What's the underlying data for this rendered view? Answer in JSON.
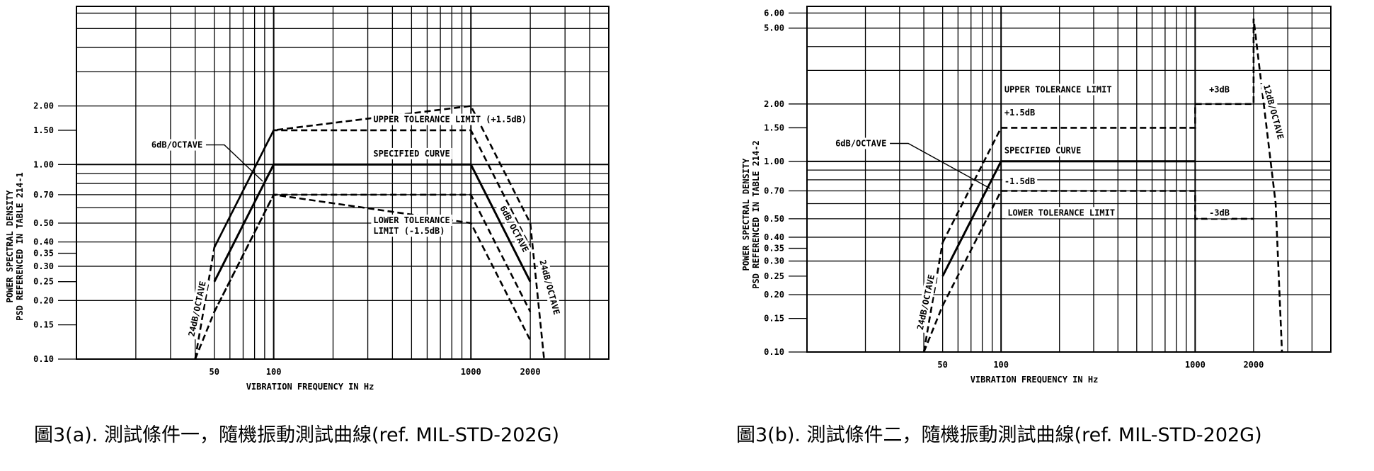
{
  "chart_data": [
    {
      "type": "line",
      "xscale": "log",
      "yscale": "log",
      "xlim": [
        10,
        5000
      ],
      "ylim": [
        0.1,
        6.5
      ],
      "grid": true,
      "xlabel": "VIBRATION FREQUENCY IN Hz",
      "ylabel_lines": [
        "POWER SPECTRAL DENSITY",
        "PSD REFERENCED IN TABLE 214-1"
      ],
      "x_ticks": [
        50,
        100,
        1000,
        2000
      ],
      "y_ticks": [
        0.1,
        0.15,
        0.2,
        0.25,
        0.3,
        0.35,
        0.4,
        0.5,
        0.7,
        1.0,
        1.5,
        2.0
      ],
      "y_tick_labels": [
        "0.10",
        "0.15",
        "0.20",
        "0.25",
        "0.30",
        "0.35",
        "0.40",
        "0.50",
        "0.70",
        "1.00",
        "1.50",
        "2.00"
      ],
      "series": [
        {
          "style": "solid",
          "x": [
            50,
            100,
            1000,
            2000
          ],
          "y": [
            0.25,
            1.0,
            1.0,
            0.25
          ]
        },
        {
          "style": "dashed",
          "x": [
            50,
            100,
            1000,
            2000
          ],
          "y": [
            0.375,
            1.5,
            1.5,
            0.375
          ]
        },
        {
          "style": "dashed",
          "x": [
            50,
            100,
            1000,
            2000
          ],
          "y": [
            0.175,
            0.7,
            0.7,
            0.175
          ]
        },
        {
          "style": "dashed",
          "x": [
            40,
            50,
            100,
            1000,
            2000,
            2350
          ],
          "y": [
            0.1,
            0.375,
            1.5,
            2.0,
            0.5,
            0.1
          ]
        },
        {
          "style": "dashed",
          "x": [
            40,
            50,
            100,
            1000,
            2000
          ],
          "y": [
            0.1,
            0.175,
            0.7,
            0.5,
            0.125
          ]
        }
      ],
      "annotations": [
        {
          "text": "UPPER TOLERANCE LIMIT (+1.5dB)",
          "x": 320,
          "y": 1.65
        },
        {
          "text": "SPECIFIED CURVE",
          "x": 320,
          "y": 1.1
        },
        {
          "text": "LOWER TOLERANCE",
          "x": 320,
          "y": 0.5
        },
        {
          "text": "LIMIT (-1.5dB)",
          "x": 320,
          "y": 0.44
        },
        {
          "text": "6dB/OCTAVE",
          "x": 24,
          "y": 1.22,
          "pointer_to": [
            88,
            0.82
          ]
        },
        {
          "text": "24dB/OCTAVE",
          "x": 39.5,
          "y": 0.13,
          "rotate": -78
        },
        {
          "text": "6dB/OCTAVE",
          "x": 1400,
          "y": 0.6,
          "rotate": 62
        },
        {
          "text": "24dB/OCTAVE",
          "x": 2230,
          "y": 0.32,
          "rotate": 75
        }
      ]
    },
    {
      "type": "line",
      "xscale": "log",
      "yscale": "log",
      "xlim": [
        10,
        5000
      ],
      "ylim": [
        0.1,
        6.5
      ],
      "grid": true,
      "xlabel": "VIBRATION FREQUENCY IN Hz",
      "ylabel_lines": [
        "POWER SPECTRAL DENSITY",
        "PSD REFERENCED IN TABLE 214-2"
      ],
      "x_ticks": [
        50,
        100,
        1000,
        2000
      ],
      "y_ticks": [
        0.1,
        0.15,
        0.2,
        0.25,
        0.3,
        0.35,
        0.4,
        0.5,
        0.7,
        1.0,
        1.5,
        2.0,
        5.0,
        6.0
      ],
      "y_tick_labels": [
        "0.10",
        "0.15",
        "0.20",
        "0.25",
        "0.30",
        "0.35",
        "0.40",
        "0.50",
        "0.70",
        "1.00",
        "1.50",
        "2.00",
        "5.00",
        "6.00"
      ],
      "series": [
        {
          "style": "solid",
          "x": [
            50,
            100,
            1000
          ],
          "y": [
            0.25,
            1.0,
            1.0
          ]
        },
        {
          "style": "dashed",
          "x": [
            50,
            100,
            1000,
            1000,
            2000,
            2000,
            2600,
            2800
          ],
          "y": [
            0.375,
            1.5,
            1.5,
            2.0,
            2.0,
            5.6,
            0.6,
            0.1
          ]
        },
        {
          "style": "dashed",
          "x": [
            50,
            100,
            1000,
            1000,
            2000
          ],
          "y": [
            0.175,
            0.7,
            0.7,
            0.5,
            0.5
          ]
        },
        {
          "style": "dashed",
          "x": [
            40,
            50
          ],
          "y": [
            0.1,
            0.375
          ]
        },
        {
          "style": "dashed",
          "x": [
            40,
            50
          ],
          "y": [
            0.1,
            0.175
          ]
        }
      ],
      "annotations": [
        {
          "text": "UPPER TOLERANCE LIMIT",
          "x": 104,
          "y": 2.3
        },
        {
          "text": "+3dB",
          "x": 1180,
          "y": 2.3
        },
        {
          "text": "+1.5dB",
          "x": 104,
          "y": 1.74
        },
        {
          "text": "SPECIFIED CURVE",
          "x": 104,
          "y": 1.1
        },
        {
          "text": "-1.5dB",
          "x": 104,
          "y": 0.76
        },
        {
          "text": "LOWER TOLERANCE LIMIT",
          "x": 108,
          "y": 0.52
        },
        {
          "text": "-3dB",
          "x": 1180,
          "y": 0.52
        },
        {
          "text": "6dB/OCTAVE",
          "x": 14,
          "y": 1.2,
          "pointer_to": [
            88,
            0.72
          ]
        },
        {
          "text": "24dB/OCTAVE",
          "x": 39.5,
          "y": 0.13,
          "rotate": -78
        },
        {
          "text": "12dB/OCTAVE",
          "x": 2250,
          "y": 2.5,
          "rotate": 75
        }
      ]
    }
  ],
  "captions": [
    "圖3(a). 測試條件一，隨機振動測試曲線(ref. MIL-STD-202G)",
    "圖3(b). 測試條件二，隨機振動測試曲線(ref. MIL-STD-202G)"
  ]
}
